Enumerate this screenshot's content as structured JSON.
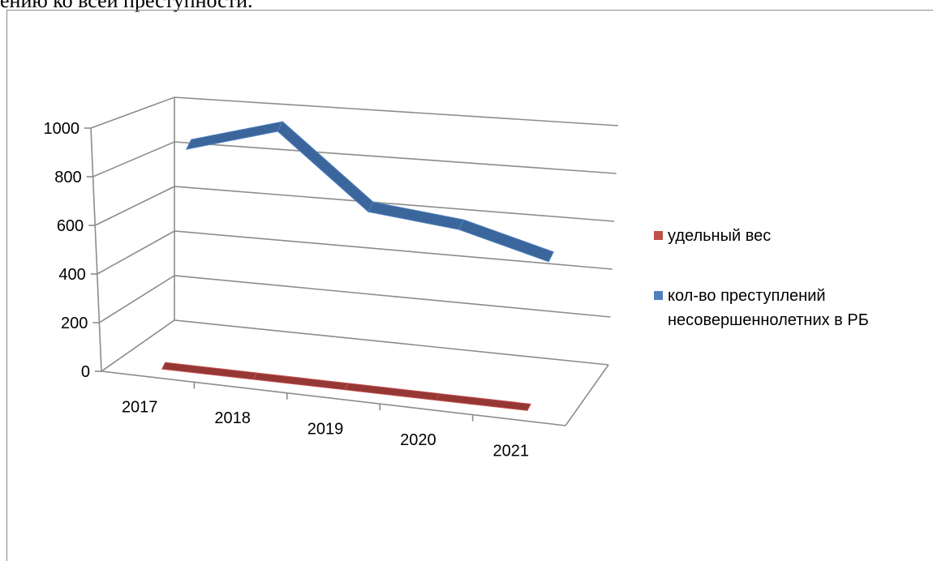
{
  "document": {
    "partial_text": "ению ко всей преступности."
  },
  "colors": {
    "series_red": "#953735",
    "series_blue": "#4f81bd",
    "grid": "#8c8c8c"
  },
  "chart_data": {
    "type": "line",
    "style": "3d",
    "categories": [
      "2017",
      "2018",
      "2019",
      "2020",
      "2021"
    ],
    "ylim": [
      0,
      1000
    ],
    "yticks": [
      "0",
      "200",
      "400",
      "600",
      "800",
      "1000"
    ],
    "grid": true,
    "legend_position": "right",
    "series": [
      {
        "name": "удельный вес",
        "color": "#953735",
        "values": [
          5,
          5,
          5,
          5,
          5
        ]
      },
      {
        "name": "кол-во преступлений несовершеннолетних в РБ",
        "color": "#4f81bd",
        "values": [
          880,
          990,
          680,
          640,
          540
        ]
      }
    ]
  }
}
